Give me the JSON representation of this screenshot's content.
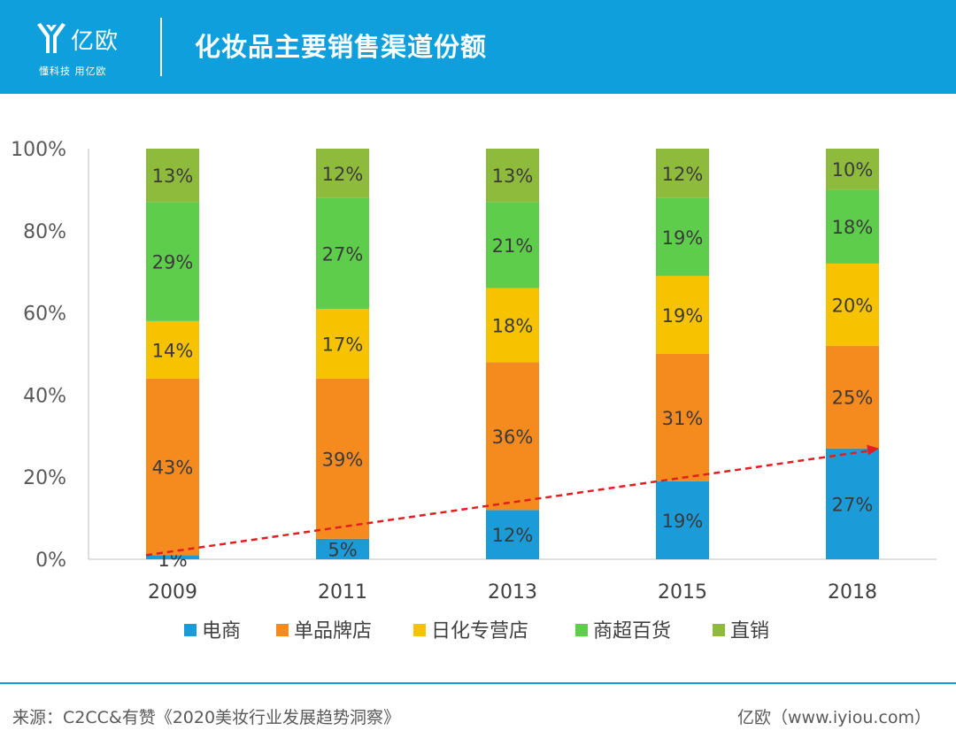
{
  "header": {
    "logo_name": "亿欧",
    "logo_tagline": "懂科技 用亿欧",
    "title": "化妆品主要销售渠道份额"
  },
  "footer": {
    "source": "来源：C2CC&有赞《2020美妆行业发展趋势洞察》",
    "brand": "亿欧（www.iyiou.com）"
  },
  "colors": {
    "header_bg": "#0f9fdc",
    "trend_line": "#e02020"
  },
  "chart_data": {
    "type": "bar",
    "stacked": true,
    "categories": [
      "2009",
      "2011",
      "2013",
      "2015",
      "2018"
    ],
    "series": [
      {
        "name": "电商",
        "color": "#1b9bd7",
        "values": [
          1,
          5,
          12,
          19,
          27
        ],
        "labels": [
          "1%",
          "5%",
          "12%",
          "19%",
          "27%"
        ]
      },
      {
        "name": "单品牌店",
        "color": "#f58a1f",
        "values": [
          43,
          39,
          36,
          31,
          25
        ],
        "labels": [
          "43%",
          "39%",
          "36%",
          "31%",
          "25%"
        ]
      },
      {
        "name": "日化专营店",
        "color": "#f7c200",
        "values": [
          14,
          17,
          18,
          19,
          20
        ],
        "labels": [
          "14%",
          "17%",
          "18%",
          "19%",
          "20%"
        ]
      },
      {
        "name": "商超百货",
        "color": "#5ecd4b",
        "values": [
          29,
          27,
          21,
          19,
          18
        ],
        "labels": [
          "29%",
          "27%",
          "21%",
          "19%",
          "18%"
        ]
      },
      {
        "name": "直销",
        "color": "#8fbb3c",
        "values": [
          13,
          12,
          13,
          12,
          10
        ],
        "labels": [
          "13%",
          "12%",
          "13%",
          "12%",
          "10%"
        ]
      }
    ],
    "y_ticks": [
      "0%",
      "20%",
      "40%",
      "60%",
      "80%",
      "100%"
    ],
    "ylim": [
      0,
      100
    ],
    "legend_position": "bottom",
    "trend_line": {
      "from_category": "2009",
      "from_value": 1,
      "to_category": "2018",
      "to_value": 27,
      "style": "dashed-arrow"
    }
  }
}
